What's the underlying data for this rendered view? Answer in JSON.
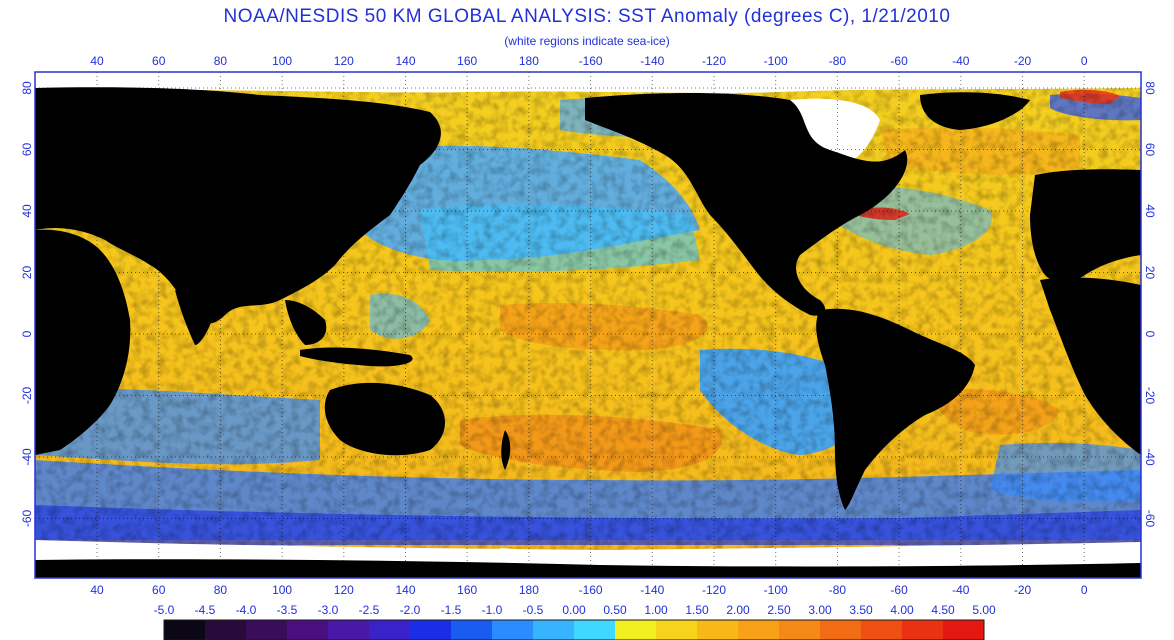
{
  "title": "NOAA/NESDIS 50 KM GLOBAL ANALYSIS: SST Anomaly (degrees C), 1/21/2010",
  "subtitle": "(white regions indicate sea-ice)",
  "x_tick_labels": [
    "40",
    "60",
    "80",
    "100",
    "120",
    "140",
    "160",
    "180",
    "-160",
    "-140",
    "-120",
    "-100",
    "-80",
    "-60",
    "-40",
    "-20",
    "0"
  ],
  "y_tick_labels": [
    "80",
    "60",
    "40",
    "20",
    "0",
    "-20",
    "-40",
    "-60"
  ],
  "colorbar": {
    "labels": [
      "-5.0",
      "-4.5",
      "-4.0",
      "-3.5",
      "-3.0",
      "-2.5",
      "-2.0",
      "-1.5",
      "-1.0",
      "-0.5",
      "0.00",
      "0.50",
      "1.00",
      "1.50",
      "2.00",
      "2.50",
      "3.00",
      "3.50",
      "4.00",
      "4.50",
      "5.00"
    ],
    "colors": [
      "#0b0714",
      "#2a0a3a",
      "#3b0c5a",
      "#4a0e7e",
      "#4a18a6",
      "#3a22c8",
      "#1a2ee8",
      "#1a5cf2",
      "#2a8cff",
      "#38b4ff",
      "#40d8ff",
      "#f2f020",
      "#f6d41c",
      "#f8b818",
      "#f8a018",
      "#f68818",
      "#f26c16",
      "#ee5014",
      "#ea3212",
      "#e41810"
    ]
  },
  "colors": {
    "land": "#000000",
    "sea_ice": "#ffffff",
    "frame": "#2a32d8",
    "title": "#2230d8"
  }
}
